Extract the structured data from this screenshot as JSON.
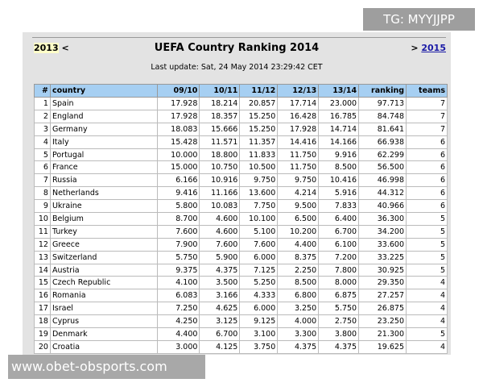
{
  "watermark_top": "TG: MYYJJPP",
  "watermark_bottom": "www.obet-obsports.com",
  "nav": {
    "prev_year": "2013",
    "prev_arrow": "<",
    "next_arrow": ">",
    "next_year": "2015"
  },
  "title": "UEFA Country Ranking 2014",
  "last_update": "Last update: Sat, 24 May 2014 23:29:42 CET",
  "headers": [
    "#",
    "country",
    "09/10",
    "10/11",
    "11/12",
    "12/13",
    "13/14",
    "ranking",
    "teams"
  ],
  "rows": [
    [
      "1",
      "Spain",
      "17.928",
      "18.214",
      "20.857",
      "17.714",
      "23.000",
      "97.713",
      "7"
    ],
    [
      "2",
      "England",
      "17.928",
      "18.357",
      "15.250",
      "16.428",
      "16.785",
      "84.748",
      "7"
    ],
    [
      "3",
      "Germany",
      "18.083",
      "15.666",
      "15.250",
      "17.928",
      "14.714",
      "81.641",
      "7"
    ],
    [
      "4",
      "Italy",
      "15.428",
      "11.571",
      "11.357",
      "14.416",
      "14.166",
      "66.938",
      "6"
    ],
    [
      "5",
      "Portugal",
      "10.000",
      "18.800",
      "11.833",
      "11.750",
      "9.916",
      "62.299",
      "6"
    ],
    [
      "6",
      "France",
      "15.000",
      "10.750",
      "10.500",
      "11.750",
      "8.500",
      "56.500",
      "6"
    ],
    [
      "7",
      "Russia",
      "6.166",
      "10.916",
      "9.750",
      "9.750",
      "10.416",
      "46.998",
      "6"
    ],
    [
      "8",
      "Netherlands",
      "9.416",
      "11.166",
      "13.600",
      "4.214",
      "5.916",
      "44.312",
      "6"
    ],
    [
      "9",
      "Ukraine",
      "5.800",
      "10.083",
      "7.750",
      "9.500",
      "7.833",
      "40.966",
      "6"
    ],
    [
      "10",
      "Belgium",
      "8.700",
      "4.600",
      "10.100",
      "6.500",
      "6.400",
      "36.300",
      "5"
    ],
    [
      "11",
      "Turkey",
      "7.600",
      "4.600",
      "5.100",
      "10.200",
      "6.700",
      "34.200",
      "5"
    ],
    [
      "12",
      "Greece",
      "7.900",
      "7.600",
      "7.600",
      "4.400",
      "6.100",
      "33.600",
      "5"
    ],
    [
      "13",
      "Switzerland",
      "5.750",
      "5.900",
      "6.000",
      "8.375",
      "7.200",
      "33.225",
      "5"
    ],
    [
      "14",
      "Austria",
      "9.375",
      "4.375",
      "7.125",
      "2.250",
      "7.800",
      "30.925",
      "5"
    ],
    [
      "15",
      "Czech Republic",
      "4.100",
      "3.500",
      "5.250",
      "8.500",
      "8.000",
      "29.350",
      "4"
    ],
    [
      "16",
      "Romania",
      "6.083",
      "3.166",
      "4.333",
      "6.800",
      "6.875",
      "27.257",
      "4"
    ],
    [
      "17",
      "Israel",
      "7.250",
      "4.625",
      "6.000",
      "3.250",
      "5.750",
      "26.875",
      "4"
    ],
    [
      "18",
      "Cyprus",
      "4.250",
      "3.125",
      "9.125",
      "4.000",
      "2.750",
      "23.250",
      "4"
    ],
    [
      "19",
      "Denmark",
      "4.400",
      "6.700",
      "3.100",
      "3.300",
      "3.800",
      "21.300",
      "5"
    ],
    [
      "20",
      "Croatia",
      "3.000",
      "4.125",
      "3.750",
      "4.375",
      "4.375",
      "19.625",
      "4"
    ]
  ]
}
